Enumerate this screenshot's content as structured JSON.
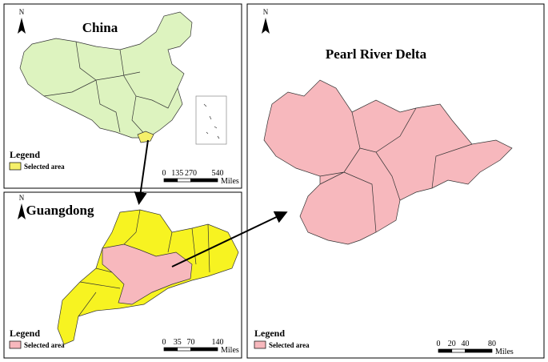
{
  "panels": [
    {
      "title": "China",
      "north": "N",
      "legend": {
        "title": "Legend",
        "item": "Selected area"
      },
      "scale": {
        "ticks": [
          0,
          135,
          270,
          540
        ],
        "unit": "Miles"
      }
    },
    {
      "title": "Guangdong",
      "north": "N",
      "legend": {
        "title": "Legend",
        "item": "Selected area"
      },
      "scale": {
        "ticks": [
          0,
          35,
          70,
          140
        ],
        "unit": "Miles"
      }
    },
    {
      "title": "Pearl River Delta",
      "north": "N",
      "legend": {
        "title": "Legend",
        "item": "Selected area"
      },
      "scale": {
        "ticks": [
          0,
          20,
          40,
          80
        ],
        "unit": "Miles"
      }
    }
  ]
}
